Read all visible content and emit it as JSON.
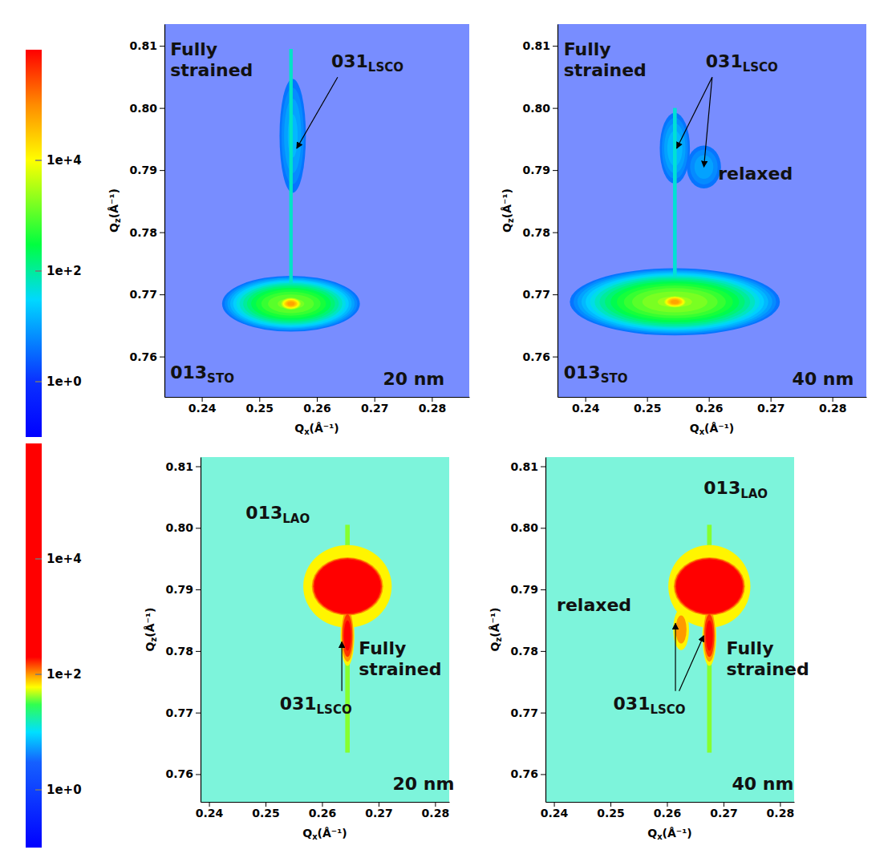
{
  "chart_data": [
    {
      "type": "heatmap",
      "x_label": {
        "base": "Q",
        "sub": "x",
        "unit": "(Å⁻¹)"
      },
      "y_label": {
        "base": "Q",
        "sub": "z",
        "unit": "(Å⁻¹)"
      },
      "xlim": [
        0.2335,
        0.2865
      ],
      "ylim": [
        0.7535,
        0.8135
      ],
      "xticks": [
        0.24,
        0.25,
        0.26,
        0.27,
        0.28
      ],
      "yticks": [
        0.76,
        0.77,
        0.78,
        0.79,
        {
          "value": 0.8,
          "label": "0.80"
        },
        0.81
      ],
      "background": 1,
      "peaks": [
        {
          "qx": 0.2555,
          "qz": 0.7685,
          "intensity": 100000,
          "fwhm_qx": 0.0015,
          "fwhm_qz": 0.0008
        },
        {
          "qx": 0.2555,
          "qz": 0.7685,
          "intensity": 2000,
          "fwhm_qx": 0.008,
          "fwhm_qz": 0.003
        },
        {
          "qx": 0.2558,
          "qz": 0.7955,
          "intensity": 20,
          "fwhm_qx": 0.003,
          "fwhm_qz": 0.012
        }
      ],
      "streaks": [
        {
          "qx": 0.2555,
          "qz_range": [
            0.7705,
            0.8095
          ],
          "intensity": 60,
          "fwhm_qx": 0.0006
        }
      ],
      "annotations": [
        {
          "text": "Fully strained",
          "qx": 0.2345,
          "qz": 0.8085
        },
        {
          "text": "031",
          "sub": "LSCO",
          "qx": 0.2625,
          "qz": 0.8065,
          "arrows": [
            [
              0.2565,
              0.7935
            ]
          ]
        },
        {
          "text": "013",
          "sub": "STO",
          "qx": 0.2345,
          "qz": 0.7565
        },
        {
          "text": "20 nm",
          "qx": 0.2715,
          "qz": 0.7555
        }
      ],
      "colorbar": {
        "range": [
          0.1,
          1000000
        ],
        "ticks": [
          {
            "value": 10000,
            "label": "1e+4"
          },
          {
            "value": 100,
            "label": "1e+2"
          },
          {
            "value": 1,
            "label": "1e+0"
          }
        ],
        "stops": [
          0.1,
          1,
          30,
          300,
          10000,
          100000,
          1000000
        ],
        "colors": [
          "#0000ff",
          "#0a30ff",
          "#00d8ff",
          "#00ff40",
          "#ffff00",
          "#ff8c00",
          "#ff0000"
        ]
      }
    },
    {
      "type": "heatmap",
      "x_label": {
        "base": "Q",
        "sub": "x",
        "unit": "(Å⁻¹)"
      },
      "y_label": {
        "base": "Q",
        "sub": "z",
        "unit": "(Å⁻¹)"
      },
      "xlim": [
        0.2355,
        0.2855
      ],
      "ylim": [
        0.7535,
        0.8135
      ],
      "xticks": [
        0.24,
        0.25,
        0.26,
        0.27,
        0.28
      ],
      "yticks": [
        0.76,
        0.77,
        0.78,
        0.79,
        {
          "value": 0.8,
          "label": "0.80"
        },
        0.81
      ],
      "background": 1,
      "peaks": [
        {
          "qx": 0.2545,
          "qz": 0.7688,
          "intensity": 100000,
          "fwhm_qx": 0.0016,
          "fwhm_qz": 0.0008
        },
        {
          "qx": 0.2545,
          "qz": 0.7688,
          "intensity": 3000,
          "fwhm_qx": 0.011,
          "fwhm_qz": 0.0035
        },
        {
          "qx": 0.2545,
          "qz": 0.7935,
          "intensity": 25,
          "fwhm_qx": 0.003,
          "fwhm_qz": 0.007
        },
        {
          "qx": 0.2592,
          "qz": 0.7905,
          "intensity": 15,
          "fwhm_qx": 0.004,
          "fwhm_qz": 0.005
        }
      ],
      "streaks": [
        {
          "qx": 0.2545,
          "qz_range": [
            0.7705,
            0.8
          ],
          "intensity": 50,
          "fwhm_qx": 0.0006
        }
      ],
      "annotations": [
        {
          "text": "Fully strained",
          "qx": 0.2365,
          "qz": 0.8085
        },
        {
          "text": "031",
          "sub": "LSCO",
          "qx": 0.2595,
          "qz": 0.8065,
          "arrows": [
            [
              0.2548,
              0.7935
            ],
            [
              0.2592,
              0.7905
            ]
          ]
        },
        {
          "text": "relaxed",
          "qx": 0.2615,
          "qz": 0.7885
        },
        {
          "text": "013",
          "sub": "STO",
          "qx": 0.2365,
          "qz": 0.7565
        },
        {
          "text": "40 nm",
          "qx": 0.2735,
          "qz": 0.7555
        }
      ]
    },
    {
      "type": "heatmap",
      "x_label": {
        "base": "Q",
        "sub": "x",
        "unit": "(Å⁻¹)"
      },
      "y_label": {
        "base": "Q",
        "sub": "z",
        "unit": "(Å⁻¹)"
      },
      "xlim": [
        0.2385,
        0.2825
      ],
      "ylim": [
        0.7555,
        0.8115
      ],
      "xticks": [
        0.24,
        0.25,
        0.26,
        0.27,
        0.28
      ],
      "yticks": [
        0.76,
        0.77,
        0.78,
        0.79,
        {
          "value": 0.8,
          "label": "0.80"
        },
        0.81
      ],
      "background": 15,
      "peaks": [
        {
          "qx": 0.2645,
          "qz": 0.7905,
          "intensity": 100000,
          "fwhm_qx": 0.004,
          "fwhm_qz": 0.003
        },
        {
          "qx": 0.2645,
          "qz": 0.7905,
          "intensity": 150,
          "fwhm_qx": 0.014,
          "fwhm_qz": 0.012
        },
        {
          "qx": 0.2645,
          "qz": 0.7825,
          "intensity": 400,
          "fwhm_qx": 0.0015,
          "fwhm_qz": 0.006
        }
      ],
      "streaks": [
        {
          "qx": 0.2645,
          "qz_range": [
            0.7635,
            0.8005
          ],
          "intensity": 40,
          "fwhm_qx": 0.0008
        }
      ],
      "annotations": [
        {
          "text": "013",
          "sub": "LAO",
          "qx": 0.2465,
          "qz": 0.8015
        },
        {
          "text": "031",
          "sub": "LSCO",
          "qx": 0.2525,
          "qz": 0.7705,
          "arrows": [
            [
              0.2635,
              0.7815
            ]
          ]
        },
        {
          "text": "Fully strained",
          "qx": 0.2665,
          "qz": 0.7795
        },
        {
          "text": "20 nm",
          "qx": 0.2725,
          "qz": 0.7575
        }
      ],
      "colorbar": {
        "range": [
          0.1,
          1000000
        ],
        "ticks": [
          {
            "value": 10000,
            "label": "1e+4"
          },
          {
            "value": 100,
            "label": "1e+2"
          },
          {
            "value": 1,
            "label": "1e+0"
          }
        ],
        "stops": [
          0.1,
          3,
          10,
          30,
          60,
          100,
          200,
          1000000
        ],
        "colors": [
          "#0000ff",
          "#1560ff",
          "#00e0ff",
          "#30ff50",
          "#ffff00",
          "#ff9900",
          "#ff0000",
          "#ff0000"
        ]
      }
    },
    {
      "type": "heatmap",
      "x_label": {
        "base": "Q",
        "sub": "x",
        "unit": "(Å⁻¹)"
      },
      "y_label": {
        "base": "Q",
        "sub": "z",
        "unit": "(Å⁻¹)"
      },
      "xlim": [
        0.2385,
        0.2825
      ],
      "ylim": [
        0.7555,
        0.8115
      ],
      "xticks": [
        0.24,
        0.25,
        0.26,
        0.27,
        0.28
      ],
      "yticks": [
        0.76,
        0.77,
        0.78,
        0.79,
        {
          "value": 0.8,
          "label": "0.80"
        },
        0.81
      ],
      "background": 15,
      "peaks": [
        {
          "qx": 0.2675,
          "qz": 0.7905,
          "intensity": 100000,
          "fwhm_qx": 0.004,
          "fwhm_qz": 0.003
        },
        {
          "qx": 0.2675,
          "qz": 0.7905,
          "intensity": 150,
          "fwhm_qx": 0.013,
          "fwhm_qz": 0.012
        },
        {
          "qx": 0.2675,
          "qz": 0.7825,
          "intensity": 400,
          "fwhm_qx": 0.0015,
          "fwhm_qz": 0.006
        },
        {
          "qx": 0.2625,
          "qz": 0.7835,
          "intensity": 150,
          "fwhm_qx": 0.0025,
          "fwhm_qz": 0.006
        }
      ],
      "streaks": [
        {
          "qx": 0.2675,
          "qz_range": [
            0.7635,
            0.8005
          ],
          "intensity": 40,
          "fwhm_qx": 0.0008
        }
      ],
      "annotations": [
        {
          "text": "013",
          "sub": "LAO",
          "qx": 0.2665,
          "qz": 0.8055
        },
        {
          "text": "relaxed",
          "qx": 0.2405,
          "qz": 0.7865
        },
        {
          "text": "031",
          "sub": "LSCO",
          "qx": 0.2505,
          "qz": 0.7705,
          "arrows": [
            [
              0.2615,
              0.7845
            ],
            [
              0.2665,
              0.7825
            ]
          ]
        },
        {
          "text": "Fully strained",
          "qx": 0.2705,
          "qz": 0.7795
        },
        {
          "text": "40 nm",
          "qx": 0.2715,
          "qz": 0.7575
        }
      ]
    }
  ]
}
